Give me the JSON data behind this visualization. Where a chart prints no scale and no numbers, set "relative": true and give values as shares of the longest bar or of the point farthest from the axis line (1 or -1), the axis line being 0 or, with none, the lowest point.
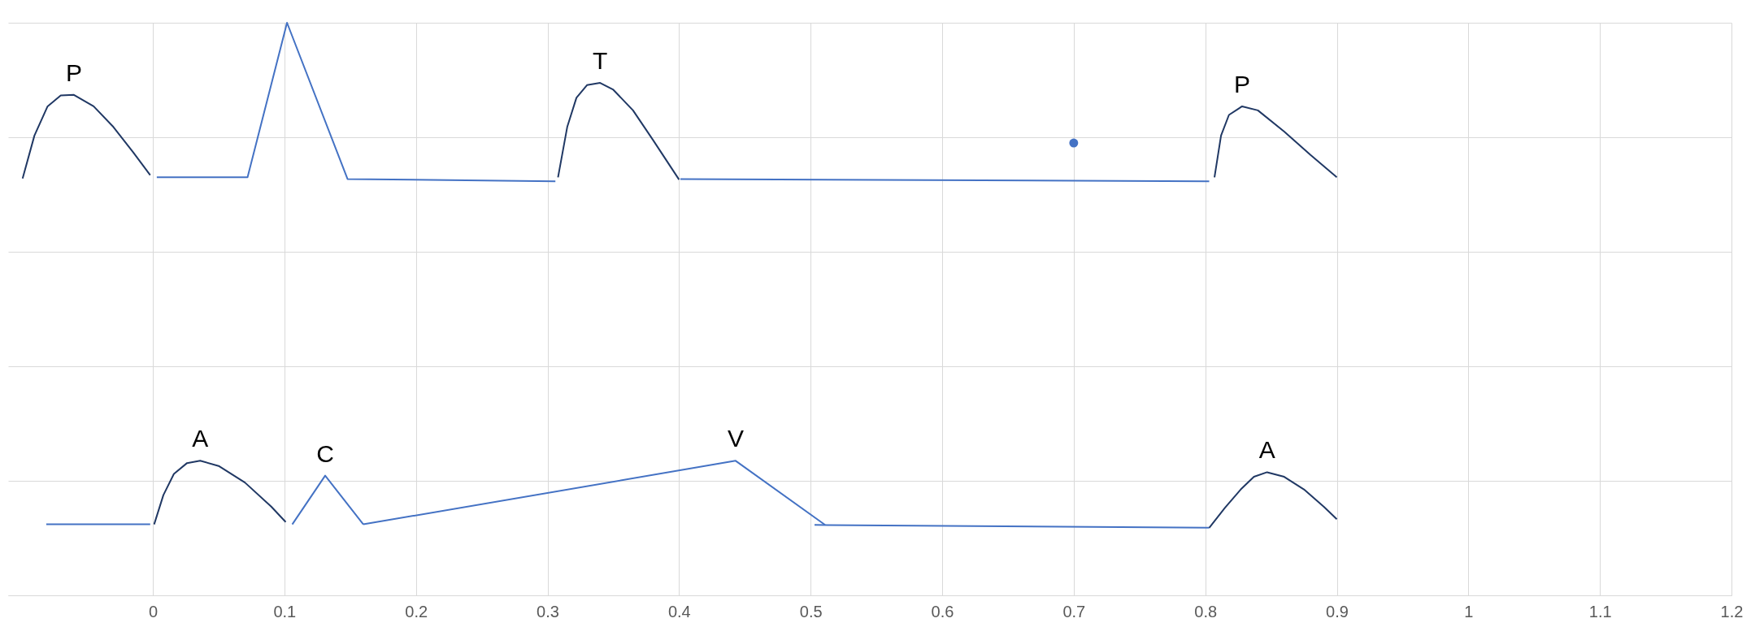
{
  "chart_data": {
    "type": "line",
    "relative": true,
    "xlim": [
      -0.11,
      1.2
    ],
    "xticks": [
      0,
      0.1,
      0.2,
      0.3,
      0.4,
      0.5,
      0.6,
      0.7,
      0.8,
      0.9,
      1,
      1.1,
      1.2
    ],
    "grid": true,
    "line_style": "solid",
    "series": [
      {
        "name": "P",
        "color": "#203864",
        "x": [
          -0.099,
          -0.09,
          -0.08,
          -0.07,
          -0.06,
          -0.045,
          -0.03,
          -0.015,
          -0.002
        ],
        "values": [
          0.728,
          0.803,
          0.854,
          0.873,
          0.874,
          0.854,
          0.818,
          0.774,
          0.734
        ]
      },
      {
        "color": "#4472c4",
        "x": [
          0.003,
          0.072,
          0.102,
          0.148,
          0.306
        ],
        "values": [
          0.73,
          0.73,
          1,
          0.727,
          0.723
        ]
      },
      {
        "name": "T",
        "color": "#203864",
        "x": [
          0.308,
          0.315,
          0.322,
          0.33,
          0.34,
          0.35,
          0.365,
          0.38,
          0.4
        ],
        "values": [
          0.73,
          0.818,
          0.869,
          0.891,
          0.895,
          0.883,
          0.847,
          0.796,
          0.726
        ]
      },
      {
        "color": "#4472c4",
        "x": [
          0.401,
          0.803
        ],
        "values": [
          0.727,
          0.723
        ]
      },
      {
        "name": "P",
        "color": "#203864",
        "x": [
          0.807,
          0.812,
          0.818,
          0.828,
          0.84,
          0.86,
          0.88,
          0.9
        ],
        "values": [
          0.73,
          0.803,
          0.839,
          0.854,
          0.847,
          0.81,
          0.769,
          0.73
        ]
      },
      {
        "type": "scatter",
        "marker": "circle",
        "color": "#4472c4",
        "x": [
          0.7
        ],
        "values": [
          0.79
        ]
      },
      {
        "color": "#4472c4",
        "x": [
          -0.081,
          -0.002
        ],
        "values": [
          0.124,
          0.124
        ]
      },
      {
        "name": "A",
        "color": "#203864",
        "x": [
          0.001,
          0.008,
          0.016,
          0.026,
          0.036,
          0.05,
          0.07,
          0.09,
          0.101
        ],
        "values": [
          0.124,
          0.175,
          0.212,
          0.231,
          0.235,
          0.226,
          0.197,
          0.155,
          0.128
        ]
      },
      {
        "name": "C",
        "color": "#4472c4",
        "x": [
          0.106,
          0.131,
          0.16
        ],
        "values": [
          0.124,
          0.209,
          0.124
        ]
      },
      {
        "name": "V",
        "color": "#4472c4",
        "x": [
          0.16,
          0.443,
          0.511
        ],
        "values": [
          0.124,
          0.235,
          0.123
        ]
      },
      {
        "color": "#4472c4",
        "x": [
          0.503,
          0.803
        ],
        "values": [
          0.123,
          0.118
        ]
      },
      {
        "name": "A",
        "color": "#203864",
        "x": [
          0.803,
          0.815,
          0.827,
          0.837,
          0.847,
          0.86,
          0.875,
          0.89,
          0.9
        ],
        "values": [
          0.118,
          0.153,
          0.185,
          0.207,
          0.215,
          0.207,
          0.185,
          0.155,
          0.133
        ]
      }
    ]
  }
}
